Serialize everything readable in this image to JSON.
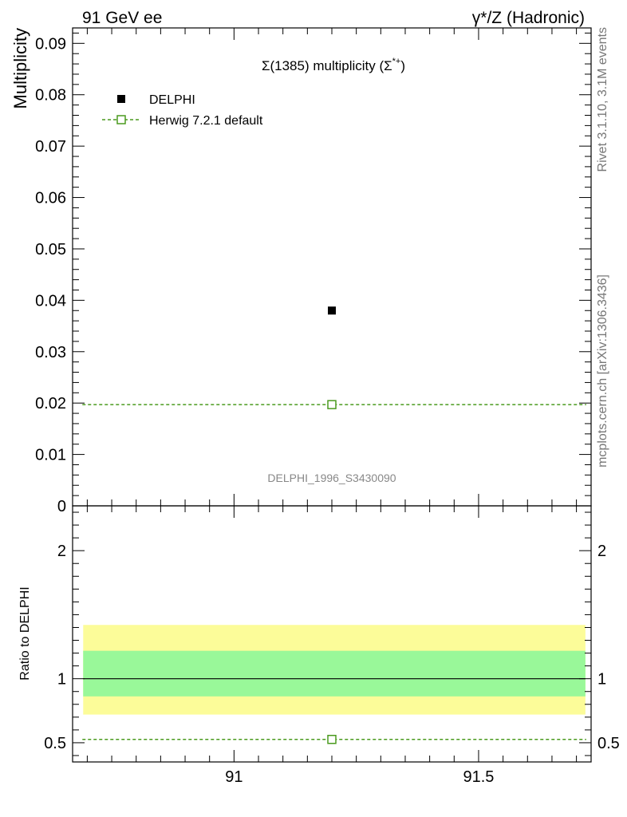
{
  "header": {
    "left": "91 GeV ee",
    "right": "γ*/Z (Hadronic)"
  },
  "side_labels": {
    "rivet": "Rivet 3.1.10,  3.1M events",
    "mcplots": "mcplots.cern.ch [arXiv:1306.3436]"
  },
  "chart_data": {
    "type": "scatter",
    "title": "Σ(1385) multiplicity (Σ*+)",
    "title_parts": {
      "prefix": "Σ(1385) multiplicity (Σ",
      "sup": "*+",
      "suffix": ")"
    },
    "watermark": "DELPHI_1996_S3430090",
    "ylabel": "Multiplicity",
    "ratio_ylabel": "Ratio to DELPHI",
    "xlim": [
      90.67,
      91.73
    ],
    "ylim": [
      0,
      0.093
    ],
    "ratio_ylim": [
      0.35,
      2.35
    ],
    "x_ticks": [
      {
        "value": 91,
        "label": "91"
      },
      {
        "value": 91.5,
        "label": "91.5"
      }
    ],
    "y_ticks": [
      {
        "value": 0,
        "label": "0"
      },
      {
        "value": 0.01,
        "label": "0.01"
      },
      {
        "value": 0.02,
        "label": "0.02"
      },
      {
        "value": 0.03,
        "label": "0.03"
      },
      {
        "value": 0.04,
        "label": "0.04"
      },
      {
        "value": 0.05,
        "label": "0.05"
      },
      {
        "value": 0.06,
        "label": "0.06"
      },
      {
        "value": 0.07,
        "label": "0.07"
      },
      {
        "value": 0.08,
        "label": "0.08"
      },
      {
        "value": 0.09,
        "label": "0.09"
      }
    ],
    "ratio_ticks": [
      {
        "value": 0.5,
        "label": "0.5"
      },
      {
        "value": 1,
        "label": "1"
      },
      {
        "value": 2,
        "label": "2"
      }
    ],
    "legend_position": "top-left",
    "series": [
      {
        "name": "DELPHI",
        "kind": "data",
        "color": "#000000",
        "points": [
          {
            "x": 91.2,
            "y": 0.038
          }
        ],
        "ratio_band_inner": [
          0.862,
          1.218
        ],
        "ratio_band_outer": [
          0.72,
          1.42
        ]
      },
      {
        "name": "Herwig 7.2.1 default",
        "kind": "mc",
        "color": "#4a9a1e",
        "line_x": [
          90.69,
          91.72
        ],
        "y": 0.0197,
        "points": [
          {
            "x": 91.2,
            "y": 0.0197
          }
        ],
        "ratio": 0.526
      }
    ],
    "band_colors": {
      "inner": "#99f899",
      "outer": "#fcfc99"
    }
  }
}
